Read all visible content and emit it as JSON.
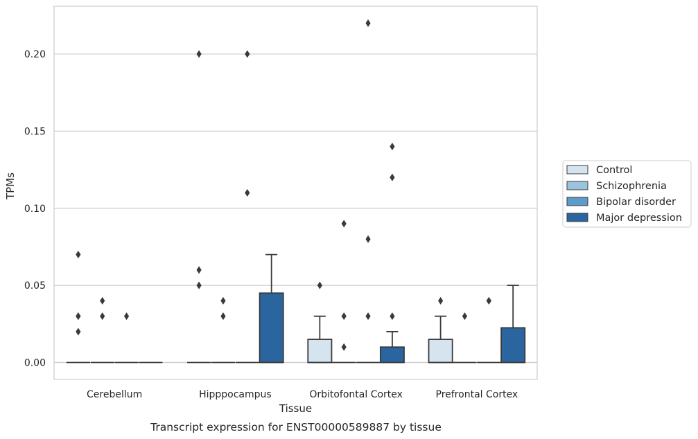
{
  "caption": "Transcript expression for ENST00000589887 by tissue",
  "chart_data": {
    "type": "boxplot",
    "xlabel": "Tissue",
    "ylabel": "TPMs",
    "categories": [
      "Cerebellum",
      "Hipppocampus",
      "Orbitofontal Cortex",
      "Prefrontal Cortex"
    ],
    "ylim": [
      -0.011,
      0.231
    ],
    "yticks": [
      0.0,
      0.05,
      0.1,
      0.15,
      0.2
    ],
    "ytick_labels": [
      "0.00",
      "0.05",
      "0.10",
      "0.15",
      "0.20"
    ],
    "grid": "horizontal",
    "legend_position": "right",
    "series": [
      {
        "name": "Control",
        "color": "#d6e4f0",
        "boxes": [
          {
            "q1": 0,
            "median": 0,
            "q3": 0,
            "whisker_low": 0,
            "whisker_high": 0,
            "outliers": [
              0.03,
              0.03,
              0.07,
              0.02
            ]
          },
          {
            "q1": 0,
            "median": 0,
            "q3": 0,
            "whisker_low": 0,
            "whisker_high": 0,
            "outliers": [
              0.2,
              0.06,
              0.05
            ]
          },
          {
            "q1": 0,
            "median": 0,
            "q3": 0.015,
            "whisker_low": 0,
            "whisker_high": 0.03,
            "outliers": [
              0.05
            ]
          },
          {
            "q1": 0,
            "median": 0,
            "q3": 0.015,
            "whisker_low": 0,
            "whisker_high": 0.03,
            "outliers": [
              0.04
            ]
          }
        ]
      },
      {
        "name": "Schizophrenia",
        "color": "#9ac4de",
        "boxes": [
          {
            "q1": 0,
            "median": 0,
            "q3": 0,
            "whisker_low": 0,
            "whisker_high": 0,
            "outliers": [
              0.03,
              0.04
            ]
          },
          {
            "q1": 0,
            "median": 0,
            "q3": 0,
            "whisker_low": 0,
            "whisker_high": 0,
            "outliers": [
              0.04,
              0.03
            ]
          },
          {
            "q1": 0,
            "median": 0,
            "q3": 0,
            "whisker_low": 0,
            "whisker_high": 0,
            "outliers": [
              0.09,
              0.03,
              0.01
            ]
          },
          {
            "q1": 0,
            "median": 0,
            "q3": 0,
            "whisker_low": 0,
            "whisker_high": 0,
            "outliers": [
              0.03
            ]
          }
        ]
      },
      {
        "name": "Bipolar disorder",
        "color": "#5b9cc9",
        "boxes": [
          {
            "q1": 0,
            "median": 0,
            "q3": 0,
            "whisker_low": 0,
            "whisker_high": 0,
            "outliers": [
              0.03
            ]
          },
          {
            "q1": 0,
            "median": 0,
            "q3": 0,
            "whisker_low": 0,
            "whisker_high": 0,
            "outliers": [
              0.2,
              0.11
            ]
          },
          {
            "q1": 0,
            "median": 0,
            "q3": 0,
            "whisker_low": 0,
            "whisker_high": 0,
            "outliers": [
              0.22,
              0.08,
              0.03
            ]
          },
          {
            "q1": 0,
            "median": 0,
            "q3": 0,
            "whisker_low": 0,
            "whisker_high": 0,
            "outliers": [
              0.04,
              0.04
            ]
          }
        ]
      },
      {
        "name": "Major depression",
        "color": "#2a65a0",
        "boxes": [
          {
            "q1": 0,
            "median": 0,
            "q3": 0,
            "whisker_low": 0,
            "whisker_high": 0,
            "outliers": []
          },
          {
            "q1": 0,
            "median": 0,
            "q3": 0.045,
            "whisker_low": 0,
            "whisker_high": 0.07,
            "outliers": []
          },
          {
            "q1": 0,
            "median": 0,
            "q3": 0.01,
            "whisker_low": 0,
            "whisker_high": 0.02,
            "outliers": [
              0.14,
              0.12,
              0.03
            ]
          },
          {
            "q1": 0,
            "median": 0,
            "q3": 0.0225,
            "whisker_low": 0,
            "whisker_high": 0.05,
            "outliers": []
          }
        ]
      }
    ]
  }
}
